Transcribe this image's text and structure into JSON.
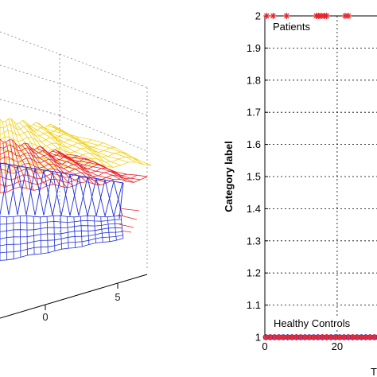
{
  "chart_data": [
    {
      "type": "surface3d",
      "title": "",
      "xlabel": "",
      "ylabel": "",
      "zlabel": "",
      "x_tick_labels": [
        "0",
        "5"
      ],
      "surfaces": [
        {
          "color": "#f2d21a"
        },
        {
          "color": "#e8222a"
        },
        {
          "color": "#1f2fd6"
        }
      ]
    },
    {
      "type": "scatter",
      "title": "",
      "xlabel": "T",
      "ylabel": "Category label",
      "ylim": [
        1,
        2
      ],
      "xlim": [
        0,
        33
      ],
      "y_ticks": [
        "1",
        "1.1",
        "1.2",
        "1.3",
        "1.4",
        "1.5",
        "1.6",
        "1.7",
        "1.8",
        "1.9",
        "2"
      ],
      "x_ticks": [
        "0",
        "20"
      ],
      "grid": true,
      "annotations": [
        "Patients",
        "Healthy Controls"
      ],
      "series": [
        {
          "marker": "*",
          "color": "#e8222a",
          "x": [
            0.5,
            2.3,
            6.0,
            14.2,
            14.9,
            15.6,
            16.4,
            17.1,
            22.2,
            23.1
          ],
          "y": [
            2,
            2,
            2,
            2,
            2,
            2,
            2,
            2,
            2,
            2
          ]
        },
        {
          "marker": "o",
          "color": "#1f2fd6",
          "x": [
            0.3,
            1.5,
            2.7,
            3.9,
            5.1,
            6.3,
            7.5,
            8.7,
            9.9,
            11.1,
            12.3,
            13.5,
            14.7,
            15.9,
            17.1,
            18.3,
            19.5,
            20.7,
            21.9,
            23.1,
            24.3,
            25.5,
            26.7,
            27.9,
            29.1,
            30.3,
            31.5,
            32.7
          ],
          "y": [
            1,
            1,
            1,
            1,
            1,
            1,
            1,
            1,
            1,
            1,
            1,
            1,
            1,
            1,
            1,
            1,
            1,
            1,
            1,
            1,
            1,
            1,
            1,
            1,
            1,
            1,
            1,
            1
          ]
        },
        {
          "marker": "*",
          "color": "#e8222a",
          "x": [
            0.3,
            1.5,
            2.7,
            3.9,
            5.1,
            6.3,
            7.5,
            8.7,
            9.9,
            11.1,
            12.3,
            13.5,
            14.7,
            15.9,
            17.1,
            18.3,
            19.5,
            20.7,
            21.9,
            23.1,
            24.3,
            25.5,
            26.7,
            27.9,
            29.1,
            30.3,
            31.5,
            32.7
          ],
          "y": [
            1,
            1,
            1,
            1,
            1,
            1,
            1,
            1,
            1,
            1,
            1,
            1,
            1,
            1,
            1,
            1,
            1,
            1,
            1,
            1,
            1,
            1,
            1,
            1,
            1,
            1,
            1,
            1
          ]
        }
      ]
    }
  ]
}
